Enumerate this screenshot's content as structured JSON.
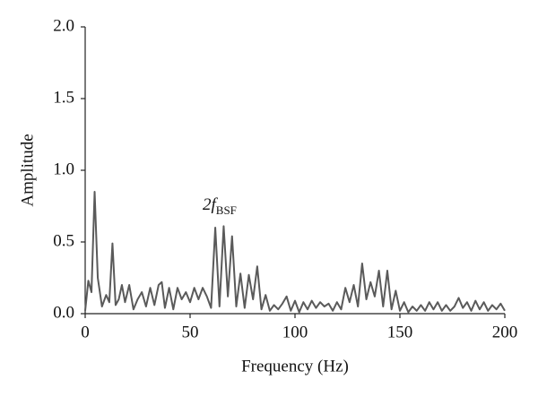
{
  "chart_data": {
    "type": "line",
    "x_label": "Frequency (Hz)",
    "y_label": "Amplitude",
    "annotation": {
      "text": "2f",
      "subscript": "BSF"
    },
    "color": "#5a5a5a",
    "x": [
      0,
      1.5,
      3,
      4.5,
      6,
      8,
      10,
      11.5,
      13,
      14.5,
      16,
      17.5,
      19,
      21,
      23,
      25,
      27,
      29,
      31,
      33,
      35,
      36.5,
      38,
      40,
      42,
      44,
      46,
      48,
      50,
      52,
      54,
      56,
      58,
      60,
      62,
      64,
      66,
      68,
      70,
      72,
      74,
      76,
      78,
      80,
      82,
      84,
      86,
      88,
      90,
      92,
      94,
      96,
      98,
      100,
      102,
      104,
      106,
      108,
      110,
      112,
      114,
      116,
      118,
      120,
      122,
      124,
      126,
      128,
      130,
      132,
      134,
      136,
      138,
      140,
      142,
      144,
      146,
      148,
      150,
      152,
      154,
      156,
      158,
      160,
      162,
      164,
      166,
      168,
      170,
      172,
      174,
      176,
      178,
      180,
      182,
      184,
      186,
      188,
      190,
      192,
      194,
      196,
      198,
      200
    ],
    "values": [
      0.02,
      0.23,
      0.15,
      0.85,
      0.25,
      0.05,
      0.13,
      0.08,
      0.49,
      0.06,
      0.1,
      0.2,
      0.08,
      0.2,
      0.03,
      0.1,
      0.15,
      0.05,
      0.18,
      0.06,
      0.2,
      0.22,
      0.04,
      0.18,
      0.03,
      0.18,
      0.1,
      0.15,
      0.08,
      0.18,
      0.1,
      0.18,
      0.12,
      0.04,
      0.6,
      0.05,
      0.61,
      0.12,
      0.54,
      0.05,
      0.28,
      0.04,
      0.27,
      0.1,
      0.33,
      0.03,
      0.13,
      0.02,
      0.06,
      0.03,
      0.07,
      0.12,
      0.02,
      0.09,
      0.01,
      0.08,
      0.03,
      0.09,
      0.04,
      0.08,
      0.05,
      0.07,
      0.02,
      0.08,
      0.03,
      0.18,
      0.08,
      0.2,
      0.05,
      0.35,
      0.1,
      0.22,
      0.12,
      0.3,
      0.05,
      0.3,
      0.03,
      0.16,
      0.02,
      0.08,
      0.01,
      0.05,
      0.02,
      0.06,
      0.02,
      0.08,
      0.03,
      0.08,
      0.02,
      0.06,
      0.02,
      0.05,
      0.11,
      0.04,
      0.08,
      0.02,
      0.09,
      0.03,
      0.08,
      0.02,
      0.06,
      0.03,
      0.07,
      0.02
    ],
    "xlim": [
      0,
      200
    ],
    "xticks": [
      0,
      50,
      100,
      150,
      200
    ],
    "ylim": [
      0,
      2
    ],
    "yticks": [
      {
        "value": 0,
        "label": "0.0"
      },
      {
        "value": 0.5,
        "label": "0.5"
      },
      {
        "value": 1,
        "label": "1.0"
      },
      {
        "value": 1.5,
        "label": "1.5"
      },
      {
        "value": 2,
        "label": "2.0"
      }
    ]
  }
}
